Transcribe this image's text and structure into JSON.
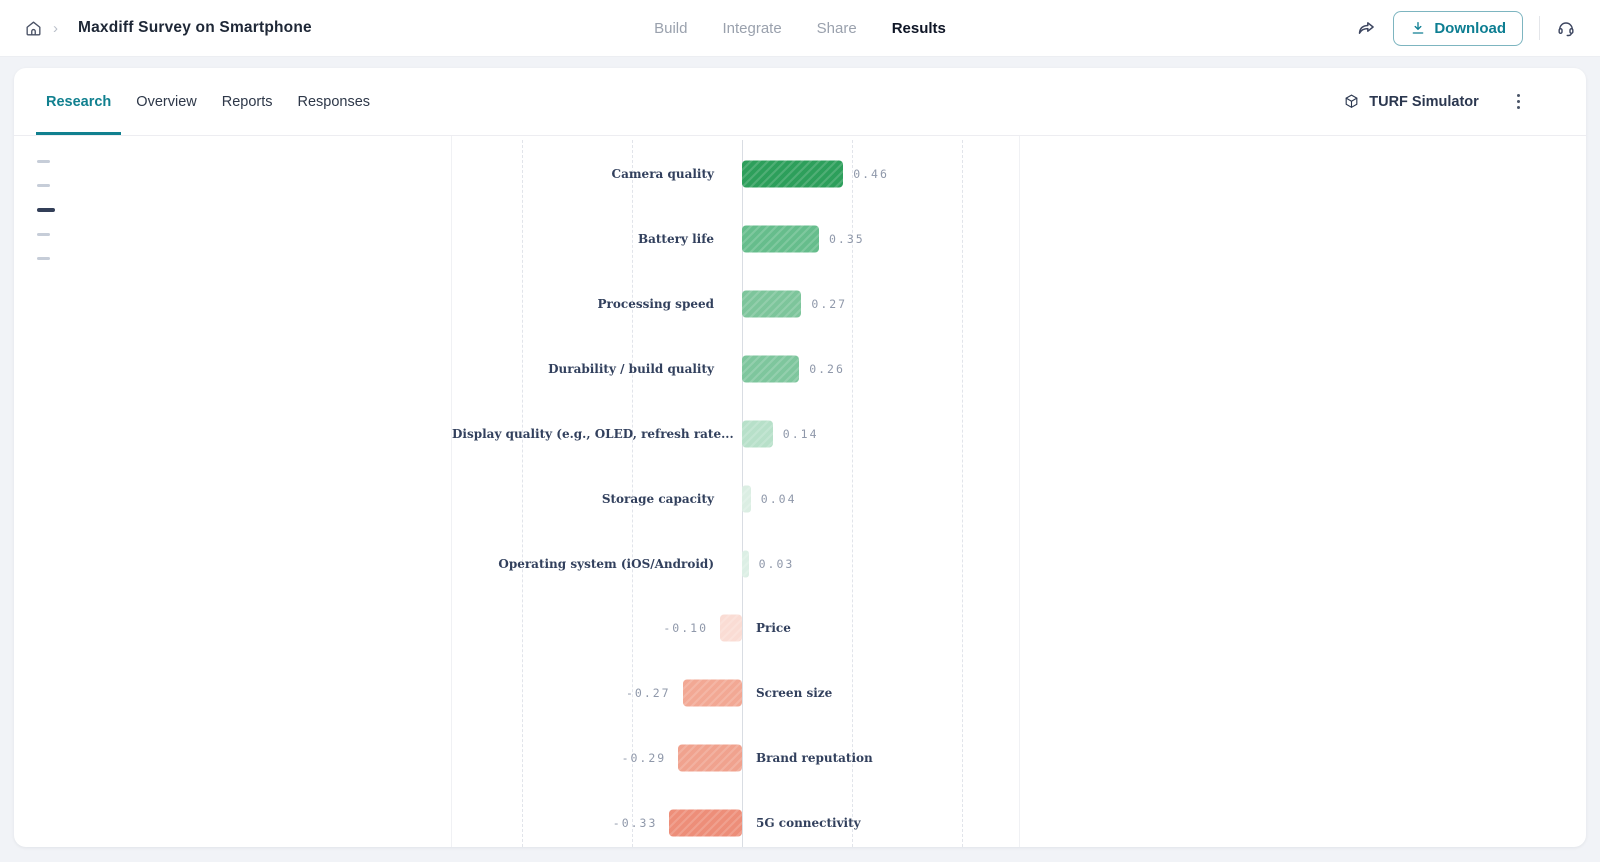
{
  "header": {
    "breadcrumb_title": "Maxdiff Survey on Smartphone",
    "nav": [
      {
        "label": "Build",
        "active": false
      },
      {
        "label": "Integrate",
        "active": false
      },
      {
        "label": "Share",
        "active": false
      },
      {
        "label": "Results",
        "active": true
      }
    ],
    "download_label": "Download"
  },
  "tabs": [
    {
      "label": "Research",
      "active": true
    },
    {
      "label": "Overview",
      "active": false
    },
    {
      "label": "Reports",
      "active": false
    },
    {
      "label": "Responses",
      "active": false
    }
  ],
  "turf_simulator_label": "TURF Simulator",
  "sidebar": {
    "items": [
      {
        "active": false
      },
      {
        "active": false
      },
      {
        "active": true
      },
      {
        "active": false
      },
      {
        "active": false
      }
    ]
  },
  "icons": {
    "home": "home-icon",
    "breadcrumb_chevron": "chevron-right-icon",
    "share": "share-forward-icon",
    "download": "download-icon",
    "support": "headset-icon",
    "turf": "cube-icon",
    "menu": "kebab-menu-icon"
  },
  "colors": {
    "accent_teal": "#11808f",
    "positive_strong": "#2d9f5b",
    "negative_strong": "#ed8e79",
    "text_dark": "#1e2736",
    "label_navy": "#32405d",
    "value_gray": "#8f98aa"
  },
  "chart_data": {
    "type": "bar",
    "orientation": "horizontal-diverging",
    "title": "",
    "xlabel": "",
    "ylabel": "",
    "categories": [
      "Camera quality",
      "Battery life",
      "Processing speed",
      "Durability / build quality",
      "Display quality (e.g., OLED, refresh rate...",
      "Storage capacity",
      "Operating system (iOS/Android)",
      "Price",
      "Screen size",
      "Brand reputation",
      "5G connectivity"
    ],
    "values": [
      0.46,
      0.35,
      0.27,
      0.26,
      0.14,
      0.04,
      0.03,
      -0.1,
      -0.27,
      -0.29,
      -0.33
    ],
    "value_labels": [
      "0.46",
      "0.35",
      "0.27",
      "0.26",
      "0.14",
      "0.04",
      "0.03",
      "-0.10",
      "-0.27",
      "-0.29",
      "-0.33"
    ],
    "bar_colors": [
      "#2d9f5b",
      "#66bd8c",
      "#7dc59b",
      "#7ec69d",
      "#b7e0c9",
      "#dbeee3",
      "#dcefe5",
      "#fadcd4",
      "#f2a894",
      "#f0a28e",
      "#ed8e79"
    ],
    "xlim": [
      -1.32,
      1.26
    ],
    "gridlines": [
      -1,
      -0.5,
      0,
      0.5,
      1
    ],
    "grid": "vertical-dashed",
    "legend": "none"
  }
}
